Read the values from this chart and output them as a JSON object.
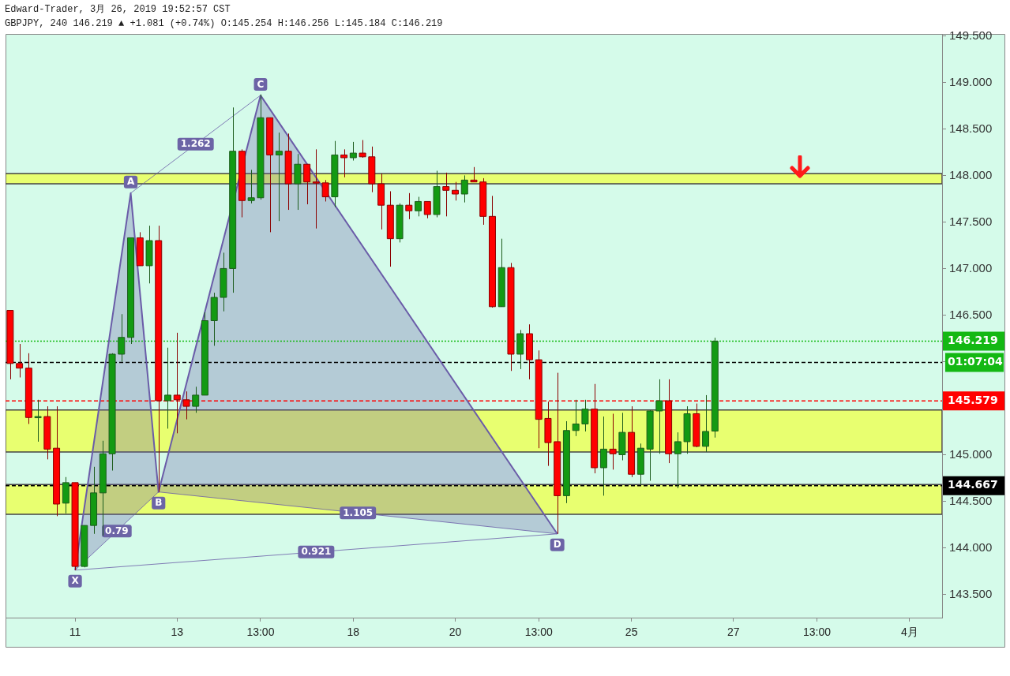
{
  "chart_data": {
    "type": "candlestick",
    "title": "Edward-Trader, 3月 26, 2019 19:52:57 CST",
    "subtitle": "GBPJPY, 240 146.219 ▲ +1.081 (+0.74%) O:145.254 H:146.256 L:145.184 C:146.219",
    "categories": [
      null,
      null,
      null,
      null,
      null,
      null,
      null,
      "11",
      null,
      null,
      null,
      null,
      null,
      null,
      null,
      null,
      null,
      null,
      "13",
      null,
      null,
      null,
      null,
      null,
      null,
      null,
      null,
      "13:00",
      null,
      null,
      null,
      null,
      null,
      null,
      null,
      null,
      null,
      "18",
      null,
      null,
      null,
      null,
      null,
      null,
      null,
      null,
      null,
      null,
      "20",
      null,
      null,
      null,
      null,
      null,
      null,
      null,
      null,
      "13:00",
      null,
      null,
      null,
      null,
      null,
      null,
      null,
      null,
      null,
      "25",
      null,
      null,
      null,
      null,
      null,
      null,
      null,
      null,
      null,
      null,
      "27",
      null,
      null,
      null,
      null,
      null,
      null,
      null,
      null,
      "13:00",
      null,
      null,
      null,
      null,
      null,
      null,
      null,
      null,
      null,
      "4月",
      null,
      null,
      null
    ],
    "ohlc": [
      [
        146.55,
        146.55,
        145.81,
        145.98
      ],
      [
        145.98,
        146.19,
        145.83,
        145.93
      ],
      [
        145.93,
        146.09,
        145.33,
        145.4
      ],
      [
        145.4,
        145.59,
        145.14,
        145.41
      ],
      [
        145.41,
        145.52,
        144.95,
        145.06
      ],
      [
        145.07,
        145.52,
        144.34,
        144.47
      ],
      [
        144.48,
        144.76,
        144.37,
        144.7
      ],
      [
        144.7,
        144.7,
        143.76,
        143.8
      ],
      [
        143.8,
        144.24,
        143.79,
        144.24
      ],
      [
        144.24,
        144.87,
        144.15,
        144.59
      ],
      [
        144.59,
        145.15,
        144.13,
        145.01
      ],
      [
        145.01,
        146.09,
        144.83,
        146.08
      ],
      [
        146.08,
        146.51,
        146.0,
        146.26
      ],
      [
        146.26,
        147.33,
        146.19,
        147.33
      ],
      [
        147.33,
        147.39,
        147.03,
        147.03
      ],
      [
        147.03,
        147.46,
        146.84,
        147.3
      ],
      [
        147.3,
        147.46,
        144.6,
        145.58
      ],
      [
        145.58,
        146.15,
        145.28,
        145.64
      ],
      [
        145.64,
        146.31,
        145.23,
        145.59
      ],
      [
        145.59,
        145.68,
        145.38,
        145.52
      ],
      [
        145.52,
        145.73,
        145.45,
        145.64
      ],
      [
        145.64,
        146.53,
        145.64,
        146.44
      ],
      [
        146.44,
        146.74,
        146.17,
        146.69
      ],
      [
        146.69,
        147.17,
        146.54,
        147.0
      ],
      [
        147.0,
        148.73,
        146.74,
        148.26
      ],
      [
        148.26,
        148.28,
        147.55,
        147.73
      ],
      [
        147.73,
        148.06,
        147.7,
        147.76
      ],
      [
        147.76,
        148.87,
        147.74,
        148.62
      ],
      [
        148.62,
        148.62,
        147.39,
        148.22
      ],
      [
        148.22,
        148.46,
        147.51,
        148.26
      ],
      [
        148.26,
        148.45,
        147.63,
        147.91
      ],
      [
        147.91,
        148.23,
        147.63,
        148.12
      ],
      [
        148.12,
        148.12,
        147.69,
        147.93
      ],
      [
        147.93,
        148.28,
        147.43,
        147.92
      ],
      [
        147.92,
        147.95,
        147.72,
        147.77
      ],
      [
        147.77,
        148.37,
        147.66,
        148.22
      ],
      [
        148.22,
        148.28,
        147.98,
        148.19
      ],
      [
        148.19,
        148.36,
        148.16,
        148.24
      ],
      [
        148.24,
        148.38,
        148.19,
        148.2
      ],
      [
        148.2,
        148.31,
        147.82,
        147.91
      ],
      [
        147.91,
        148.02,
        147.42,
        147.68
      ],
      [
        147.68,
        147.83,
        147.02,
        147.32
      ],
      [
        147.32,
        147.7,
        147.28,
        147.68
      ],
      [
        147.68,
        147.81,
        147.53,
        147.62
      ],
      [
        147.62,
        147.77,
        147.56,
        147.72
      ],
      [
        147.72,
        147.72,
        147.54,
        147.58
      ],
      [
        147.58,
        148.05,
        147.55,
        147.88
      ],
      [
        147.88,
        148.03,
        147.56,
        147.84
      ],
      [
        147.84,
        147.93,
        147.73,
        147.8
      ],
      [
        147.8,
        148.0,
        147.71,
        147.95
      ],
      [
        147.95,
        148.09,
        147.93,
        147.93
      ],
      [
        147.93,
        147.97,
        147.47,
        147.56
      ],
      [
        147.56,
        147.78,
        146.58,
        146.59
      ],
      [
        146.59,
        147.32,
        146.59,
        147.01
      ],
      [
        147.01,
        147.06,
        145.9,
        146.08
      ],
      [
        146.08,
        146.34,
        145.92,
        146.3
      ],
      [
        146.3,
        146.4,
        145.81,
        146.02
      ],
      [
        146.02,
        146.12,
        145.07,
        145.38
      ],
      [
        145.39,
        145.57,
        144.88,
        145.13
      ],
      [
        145.14,
        145.88,
        144.15,
        144.56
      ],
      [
        144.56,
        145.36,
        144.48,
        145.26
      ],
      [
        145.26,
        145.59,
        145.2,
        145.33
      ],
      [
        145.33,
        145.59,
        145.25,
        145.49
      ],
      [
        145.49,
        145.76,
        144.8,
        144.86
      ],
      [
        144.86,
        145.41,
        144.56,
        145.06
      ],
      [
        145.06,
        145.44,
        144.84,
        145.01
      ],
      [
        145.0,
        145.45,
        144.94,
        145.24
      ],
      [
        145.24,
        145.52,
        144.76,
        144.79
      ],
      [
        144.79,
        145.12,
        144.68,
        145.07
      ],
      [
        145.06,
        145.48,
        144.72,
        145.47
      ],
      [
        145.47,
        145.81,
        145.01,
        145.58
      ],
      [
        145.58,
        145.81,
        144.91,
        145.01
      ],
      [
        145.01,
        145.24,
        144.64,
        145.14
      ],
      [
        145.14,
        145.52,
        145.01,
        145.44
      ],
      [
        145.44,
        145.55,
        145.08,
        145.09
      ],
      [
        145.09,
        145.64,
        145.03,
        145.25
      ],
      [
        145.254,
        146.256,
        145.184,
        146.219
      ],
      null,
      null,
      null,
      null,
      null,
      null,
      null,
      null,
      null,
      null,
      null,
      null,
      null,
      null,
      null,
      null,
      null,
      null,
      null,
      null,
      null,
      null,
      null,
      null
    ],
    "series": [
      {
        "type": "area",
        "color": "#6a5ca8",
        "values": [
          null,
          null,
          null,
          null,
          null,
          null,
          null,
          143.76,
          null,
          null,
          null,
          null,
          null,
          147.81,
          null,
          null,
          144.6,
          null,
          null,
          null,
          null,
          null,
          null,
          null,
          null,
          null,
          null,
          148.86,
          null,
          null,
          null,
          null,
          null,
          null,
          null,
          null,
          null,
          null,
          null,
          null,
          null,
          null,
          null,
          null,
          null,
          null,
          null,
          null,
          null,
          null,
          null,
          null,
          null,
          null,
          null,
          null,
          null,
          null,
          null,
          144.15,
          null,
          null,
          null,
          null,
          null,
          null,
          null,
          null,
          null,
          null,
          null,
          null,
          null,
          null,
          null,
          null,
          null,
          null,
          null,
          null,
          null,
          null,
          null,
          null,
          null,
          null,
          null,
          null,
          null,
          null,
          null,
          null,
          null,
          null,
          null,
          null,
          null,
          null,
          null,
          null,
          null
        ],
        "value_labels": [
          null,
          null,
          null,
          null,
          null,
          null,
          null,
          "X",
          null,
          null,
          null,
          null,
          null,
          "A",
          null,
          null,
          "B",
          null,
          null,
          null,
          null,
          null,
          null,
          null,
          null,
          null,
          null,
          "C",
          null,
          null,
          null,
          null,
          null,
          null,
          null,
          null,
          null,
          null,
          null,
          null,
          null,
          null,
          null,
          null,
          null,
          null,
          null,
          null,
          null,
          null,
          null,
          null,
          null,
          null,
          null,
          null,
          null,
          null,
          null,
          "D",
          null,
          null,
          null,
          null,
          null,
          null,
          null,
          null,
          null,
          null,
          null,
          null,
          null,
          null,
          null,
          null,
          null,
          null,
          null,
          null,
          null,
          null,
          null,
          null,
          null,
          null,
          null,
          null,
          null,
          null,
          null,
          null,
          null,
          null,
          null,
          null,
          null,
          null,
          null,
          null,
          null
        ]
      }
    ],
    "ylim": [
      143.25,
      149.52
    ],
    "yticks": [
      {
        "value": 143.5,
        "label": "143.500"
      },
      {
        "value": 144,
        "label": "144.000"
      },
      {
        "value": 144.5,
        "label": "144.500"
      },
      {
        "value": 145,
        "label": "145.000"
      },
      {
        "value": 145.5,
        "label": null
      },
      {
        "value": 146,
        "label": null
      },
      {
        "value": 146.5,
        "label": "146.500"
      },
      {
        "value": 147,
        "label": "147.000"
      },
      {
        "value": 147.5,
        "label": "147.500"
      },
      {
        "value": 148,
        "label": "148.000"
      },
      {
        "value": 148.5,
        "label": "148.500"
      },
      {
        "value": 149,
        "label": "149.000"
      },
      {
        "value": 149.5,
        "label": "149.500"
      }
    ],
    "bands": [
      {
        "axis": "y",
        "from": 147.91,
        "to": 148.02,
        "color": "#e8ff70"
      },
      {
        "axis": "y",
        "from": 145.03,
        "to": 145.48,
        "color": "#e8ff70"
      },
      {
        "axis": "y",
        "from": 144.36,
        "to": 144.68,
        "color": "#e8ff70"
      }
    ],
    "ref_lines": [
      {
        "axis": "y",
        "value": 146.219,
        "label": "146.219",
        "color": "#13b813",
        "line_style": "dotted"
      },
      {
        "axis": "y",
        "value": 145.99,
        "color": "#000000",
        "line_style": "dashed"
      },
      {
        "axis": "y",
        "value": 145.579,
        "label": "145.579",
        "color": "#ff0000",
        "line_style": "dashed"
      },
      {
        "axis": "y",
        "value": 144.667,
        "label": "144.667",
        "color": "#000000",
        "line_style": "dashed"
      }
    ],
    "annotations": [
      "0.79",
      "1.262",
      "1.105",
      "0.921",
      "01:07:04"
    ]
  }
}
